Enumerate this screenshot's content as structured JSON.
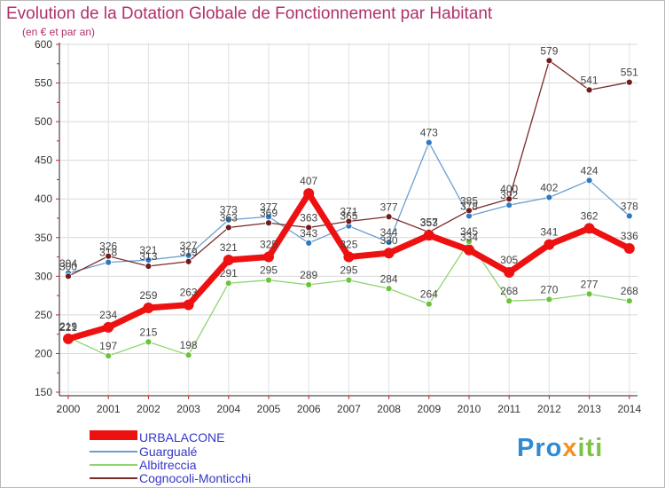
{
  "chart_data": {
    "type": "line",
    "title": "Evolution de la Dotation Globale de Fonctionnement par Habitant",
    "subtitle": "(en € et par an)",
    "x": [
      "2000",
      "2001",
      "2002",
      "2003",
      "2004",
      "2005",
      "2006",
      "2007",
      "2008",
      "2009",
      "2010",
      "2011",
      "2012",
      "2013",
      "2014"
    ],
    "yticks": [
      "150",
      "200",
      "250",
      "300",
      "350",
      "400",
      "450",
      "500",
      "550",
      "600"
    ],
    "ylim": [
      150,
      600
    ],
    "series": [
      {
        "name": "Guargualé",
        "color": "#6a9fd0",
        "marker": "#2e7ac0",
        "values": [
          304,
          318,
          321,
          327,
          373,
          377,
          343,
          365,
          344,
          473,
          378,
          392,
          402,
          424,
          378
        ],
        "labels": [
          "304",
          "318",
          "321",
          "327",
          "373",
          "377",
          "343",
          "365",
          "344",
          "473",
          "378",
          "392",
          "402",
          "424",
          "378"
        ]
      },
      {
        "name": "Albitreccia",
        "color": "#8fd470",
        "marker": "#6cc23a",
        "values": [
          221,
          197,
          215,
          198,
          291,
          295,
          289,
          295,
          284,
          264,
          345,
          268,
          270,
          277,
          268
        ],
        "labels": [
          "221",
          "197",
          "215",
          "198",
          "291",
          "295",
          "289",
          "295",
          "284",
          "264",
          "345",
          "268",
          "270",
          "277",
          "268"
        ]
      },
      {
        "name": "Cognocoli-Monticchi",
        "color": "#7a2b2b",
        "marker": "#6e1c1c",
        "values": [
          300,
          326,
          313,
          319,
          363,
          369,
          363,
          371,
          377,
          357,
          385,
          400,
          579,
          541,
          551
        ],
        "labels": [
          "300",
          "326",
          "313",
          "319",
          "363",
          "369",
          "363",
          "371",
          "377",
          "357",
          "385",
          "400",
          "579",
          "541",
          "551"
        ]
      },
      {
        "name": "URBALACONE",
        "color": "#ee1111",
        "marker": "#ee1111",
        "values": [
          219,
          234,
          259,
          263,
          321,
          325,
          407,
          325,
          330,
          353,
          334,
          305,
          341,
          362,
          336
        ],
        "labels": [
          "219",
          "234",
          "259",
          "263",
          "321",
          "325",
          "407",
          "325",
          "330",
          "353",
          "334",
          "305",
          "341",
          "362",
          "336"
        ]
      }
    ],
    "legend": [
      "URBALACONE",
      "Guargualé",
      "Albitreccia",
      "Cognocoli-Monticchi"
    ],
    "legend_position": "bottom-left"
  },
  "brand": {
    "part1": "Pro",
    "part2": "x",
    "part3": "iti"
  }
}
